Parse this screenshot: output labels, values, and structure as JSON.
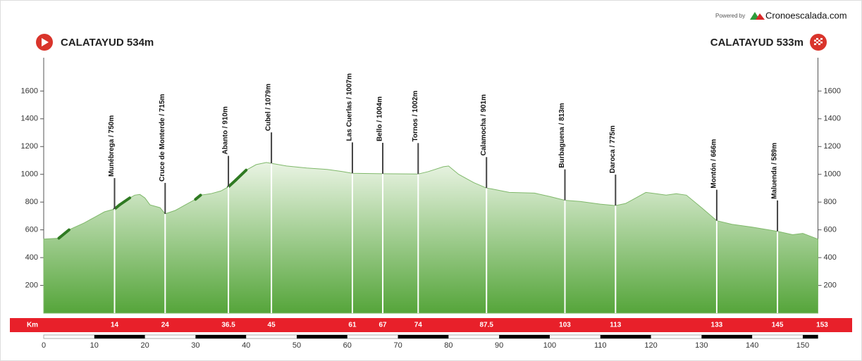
{
  "chart_data": {
    "type": "area",
    "powered_by": "Powered by",
    "brand": "Cronoescalada.com",
    "start_label": "CALATAYUD 534m",
    "finish_label": "CALATAYUD 533m",
    "km_label": "Km",
    "x": [
      0,
      3,
      5,
      8,
      10,
      12,
      14,
      15,
      17,
      18,
      19,
      20,
      21,
      22,
      23,
      24,
      26,
      28,
      30,
      31,
      33,
      35,
      36.5,
      38,
      40,
      42,
      44,
      45,
      48,
      52,
      56,
      59,
      61,
      67,
      74,
      76,
      79,
      80,
      82,
      85,
      87.5,
      88.5,
      92,
      97,
      100,
      103,
      106,
      110,
      113,
      115,
      117,
      119,
      121,
      123,
      125,
      127,
      130,
      133,
      136,
      140,
      145,
      148,
      150,
      153
    ],
    "values": [
      534,
      540,
      600,
      650,
      690,
      730,
      750,
      780,
      830,
      850,
      855,
      830,
      780,
      770,
      760,
      715,
      740,
      780,
      820,
      850,
      860,
      880,
      910,
      960,
      1030,
      1070,
      1085,
      1079,
      1060,
      1045,
      1035,
      1020,
      1007,
      1004,
      1002,
      1020,
      1055,
      1060,
      1000,
      940,
      901,
      895,
      870,
      865,
      840,
      813,
      805,
      785,
      775,
      790,
      830,
      870,
      860,
      850,
      860,
      850,
      760,
      666,
      640,
      620,
      589,
      565,
      575,
      533
    ],
    "color": "#5aa83e",
    "xlim": [
      0,
      153
    ],
    "ylim": [
      0,
      1840
    ],
    "yticks": [
      200,
      400,
      600,
      800,
      1000,
      1200,
      1400,
      1600
    ],
    "xticks": [
      0,
      10,
      20,
      30,
      40,
      50,
      60,
      70,
      80,
      90,
      100,
      110,
      120,
      130,
      140,
      150
    ],
    "waypoints": [
      {
        "km": 14,
        "label": "Munébrega / 750m"
      },
      {
        "km": 24,
        "label": "Cruce de Monterde / 715m"
      },
      {
        "km": 36.5,
        "label": "Abanto / 910m"
      },
      {
        "km": 45,
        "label": "Cubel / 1079m"
      },
      {
        "km": 61,
        "label": "Las Cuerlas / 1007m"
      },
      {
        "km": 67,
        "label": "Bello / 1004m"
      },
      {
        "km": 74,
        "label": "Tornos / 1002m"
      },
      {
        "km": 87.5,
        "label": "Calamocha / 901m"
      },
      {
        "km": 103,
        "label": "Burbaguena / 813m"
      },
      {
        "km": 113,
        "label": "Daroca / 775m"
      },
      {
        "km": 133,
        "label": "Montón / 666m"
      },
      {
        "km": 145,
        "label": "Maluenda / 589m"
      }
    ],
    "finish_km": 153
  }
}
